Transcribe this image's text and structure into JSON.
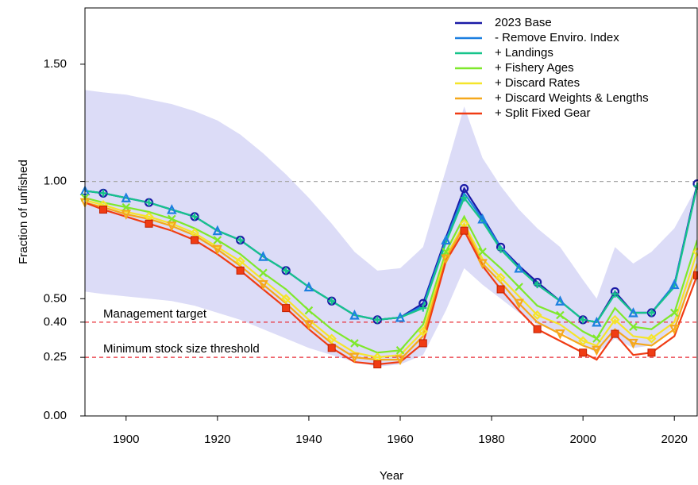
{
  "chart_data": {
    "type": "line",
    "xlabel": "Year",
    "ylabel": "Fraction of unfished",
    "xlim": [
      1891,
      2025
    ],
    "ylim": [
      0,
      1.74
    ],
    "xticks": [
      1900,
      1920,
      1940,
      1960,
      1980,
      2000,
      2020
    ],
    "yticks": [
      {
        "value": 0,
        "label": "0.00"
      },
      {
        "value": 0.25,
        "label": "0.25"
      },
      {
        "value": 0.4,
        "label": "0.40"
      },
      {
        "value": 0.5,
        "label": "0.50"
      },
      {
        "value": 1,
        "label": "1.00"
      },
      {
        "value": 1.5,
        "label": "1.50"
      }
    ],
    "legend": "top-right",
    "x": [
      1891,
      1895,
      1900,
      1905,
      1910,
      1915,
      1920,
      1925,
      1930,
      1935,
      1940,
      1945,
      1950,
      1955,
      1960,
      1965,
      1970,
      1974,
      1978,
      1982,
      1986,
      1990,
      1995,
      2000,
      2003,
      2007,
      2011,
      2015,
      2020,
      2025
    ],
    "band": {
      "color": "#dcdcf7",
      "upper": [
        1.39,
        1.38,
        1.37,
        1.35,
        1.33,
        1.3,
        1.26,
        1.2,
        1.12,
        1.03,
        0.93,
        0.82,
        0.7,
        0.62,
        0.63,
        0.72,
        1.05,
        1.32,
        1.1,
        0.98,
        0.88,
        0.8,
        0.72,
        0.58,
        0.5,
        0.72,
        0.65,
        0.7,
        0.8,
        0.98
      ],
      "lower": [
        0.53,
        0.52,
        0.51,
        0.5,
        0.49,
        0.47,
        0.44,
        0.41,
        0.37,
        0.33,
        0.29,
        0.26,
        0.23,
        0.21,
        0.22,
        0.26,
        0.45,
        0.63,
        0.56,
        0.5,
        0.44,
        0.39,
        0.36,
        0.3,
        0.27,
        0.33,
        0.29,
        0.3,
        0.38,
        0.62
      ]
    },
    "reference_lines": [
      {
        "value": 1,
        "color": "#aaaaaa"
      },
      {
        "value": 0.4,
        "color": "#e8303a",
        "label": "Management target"
      },
      {
        "value": 0.25,
        "color": "#e8303a",
        "label": "Minimum stock size threshold"
      }
    ],
    "series": [
      {
        "name": "2023 Base",
        "color": "#1a1aa6",
        "marker": "circle",
        "values": [
          0.96,
          0.95,
          0.93,
          0.91,
          0.88,
          0.85,
          0.79,
          0.75,
          0.68,
          0.62,
          0.55,
          0.49,
          0.43,
          0.41,
          0.42,
          0.48,
          0.76,
          0.97,
          0.85,
          0.72,
          0.64,
          0.57,
          0.49,
          0.41,
          0.4,
          0.53,
          0.44,
          0.44,
          0.56,
          0.99
        ]
      },
      {
        "name": "- Remove Enviro. Index",
        "color": "#1c7fe0",
        "marker": "triangle",
        "values": [
          0.96,
          0.95,
          0.93,
          0.91,
          0.88,
          0.85,
          0.79,
          0.75,
          0.68,
          0.62,
          0.55,
          0.49,
          0.43,
          0.41,
          0.42,
          0.47,
          0.75,
          0.95,
          0.84,
          0.72,
          0.63,
          0.56,
          0.49,
          0.41,
          0.4,
          0.52,
          0.44,
          0.44,
          0.56,
          0.98
        ]
      },
      {
        "name": "+ Landings",
        "color": "#17c48a",
        "marker": "plus",
        "values": [
          0.96,
          0.95,
          0.93,
          0.91,
          0.88,
          0.85,
          0.79,
          0.75,
          0.68,
          0.62,
          0.55,
          0.49,
          0.43,
          0.41,
          0.42,
          0.46,
          0.74,
          0.93,
          0.83,
          0.71,
          0.63,
          0.56,
          0.49,
          0.41,
          0.4,
          0.52,
          0.44,
          0.44,
          0.55,
          0.98
        ]
      },
      {
        "name": "+ Fishery Ages",
        "color": "#7fe82c",
        "marker": "cross",
        "values": [
          0.93,
          0.91,
          0.89,
          0.87,
          0.84,
          0.8,
          0.75,
          0.69,
          0.61,
          0.54,
          0.45,
          0.37,
          0.31,
          0.27,
          0.28,
          0.39,
          0.7,
          0.85,
          0.7,
          0.63,
          0.55,
          0.47,
          0.43,
          0.36,
          0.33,
          0.46,
          0.38,
          0.37,
          0.44,
          0.75
        ]
      },
      {
        "name": "+ Discard Rates",
        "color": "#f5e52a",
        "marker": "diamond",
        "values": [
          0.92,
          0.9,
          0.87,
          0.85,
          0.82,
          0.78,
          0.72,
          0.66,
          0.58,
          0.5,
          0.41,
          0.33,
          0.27,
          0.25,
          0.26,
          0.36,
          0.68,
          0.82,
          0.67,
          0.59,
          0.51,
          0.43,
          0.39,
          0.32,
          0.3,
          0.41,
          0.34,
          0.33,
          0.4,
          0.7
        ]
      },
      {
        "name": "+ Discard Weights & Lengths",
        "color": "#f5a81c",
        "marker": "triangle-down",
        "values": [
          0.91,
          0.89,
          0.86,
          0.84,
          0.81,
          0.77,
          0.71,
          0.64,
          0.56,
          0.48,
          0.39,
          0.31,
          0.25,
          0.24,
          0.24,
          0.34,
          0.67,
          0.81,
          0.65,
          0.57,
          0.48,
          0.4,
          0.35,
          0.3,
          0.28,
          0.37,
          0.31,
          0.3,
          0.37,
          0.65
        ]
      },
      {
        "name": "+ Split Fixed Gear",
        "color": "#f03c14",
        "marker": "square",
        "values": [
          0.91,
          0.88,
          0.85,
          0.82,
          0.79,
          0.75,
          0.69,
          0.62,
          0.54,
          0.46,
          0.37,
          0.29,
          0.23,
          0.22,
          0.23,
          0.31,
          0.66,
          0.79,
          0.64,
          0.54,
          0.45,
          0.37,
          0.32,
          0.27,
          0.24,
          0.35,
          0.26,
          0.27,
          0.34,
          0.6
        ]
      }
    ]
  }
}
